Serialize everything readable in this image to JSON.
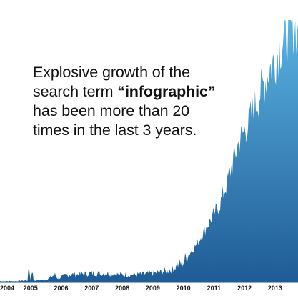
{
  "headline": {
    "line1": "Explosive growth of the",
    "line2_pre": "search term ",
    "line2_open_quote": "“",
    "line2_keyword": "infographic",
    "line2_close_quote": "”",
    "line3": "has been more than 20",
    "line4": "times in the last 3 years."
  },
  "colors": {
    "area_top": "#5ab2e2",
    "area_bottom": "#1f5b95",
    "text": "#111111"
  },
  "chart_data": {
    "type": "area",
    "title": "",
    "xlabel": "",
    "ylabel": "",
    "tick_labels": [
      "2004",
      "2005",
      "2006",
      "2007",
      "2008",
      "2009",
      "2010",
      "2011",
      "2012",
      "2013"
    ],
    "xlim": [
      2004.0,
      2013.75
    ],
    "ylim": [
      0,
      100
    ],
    "grid": false,
    "legend": "none",
    "series": [
      {
        "x": [
          2004.0,
          2004.5,
          2004.9,
          2004.95,
          2005.0,
          2005.05,
          2005.1,
          2005.5,
          2005.8,
          2005.85,
          2005.9,
          2006.0,
          2006.2,
          2006.5,
          2007.0,
          2007.5,
          2008.0,
          2008.5,
          2009.0,
          2009.3,
          2009.6,
          2009.9,
          2010.0,
          2010.2,
          2010.4,
          2010.6,
          2010.8,
          2011.0,
          2011.2,
          2011.4,
          2011.6,
          2011.8,
          2012.0,
          2012.2,
          2012.4,
          2012.6,
          2012.8,
          2013.0,
          2013.2,
          2013.4,
          2013.6,
          2013.75
        ],
        "y": [
          0.5,
          0.5,
          0.8,
          6,
          1,
          5,
          0.8,
          1.0,
          3,
          2,
          1.5,
          2,
          3,
          3,
          3.5,
          3.5,
          3,
          3,
          3.5,
          4,
          5,
          7,
          8,
          11,
          14,
          18,
          22,
          26,
          30,
          37,
          45,
          53,
          58,
          63,
          69,
          75,
          81,
          85,
          91,
          95,
          98,
          96
        ]
      }
    ]
  }
}
